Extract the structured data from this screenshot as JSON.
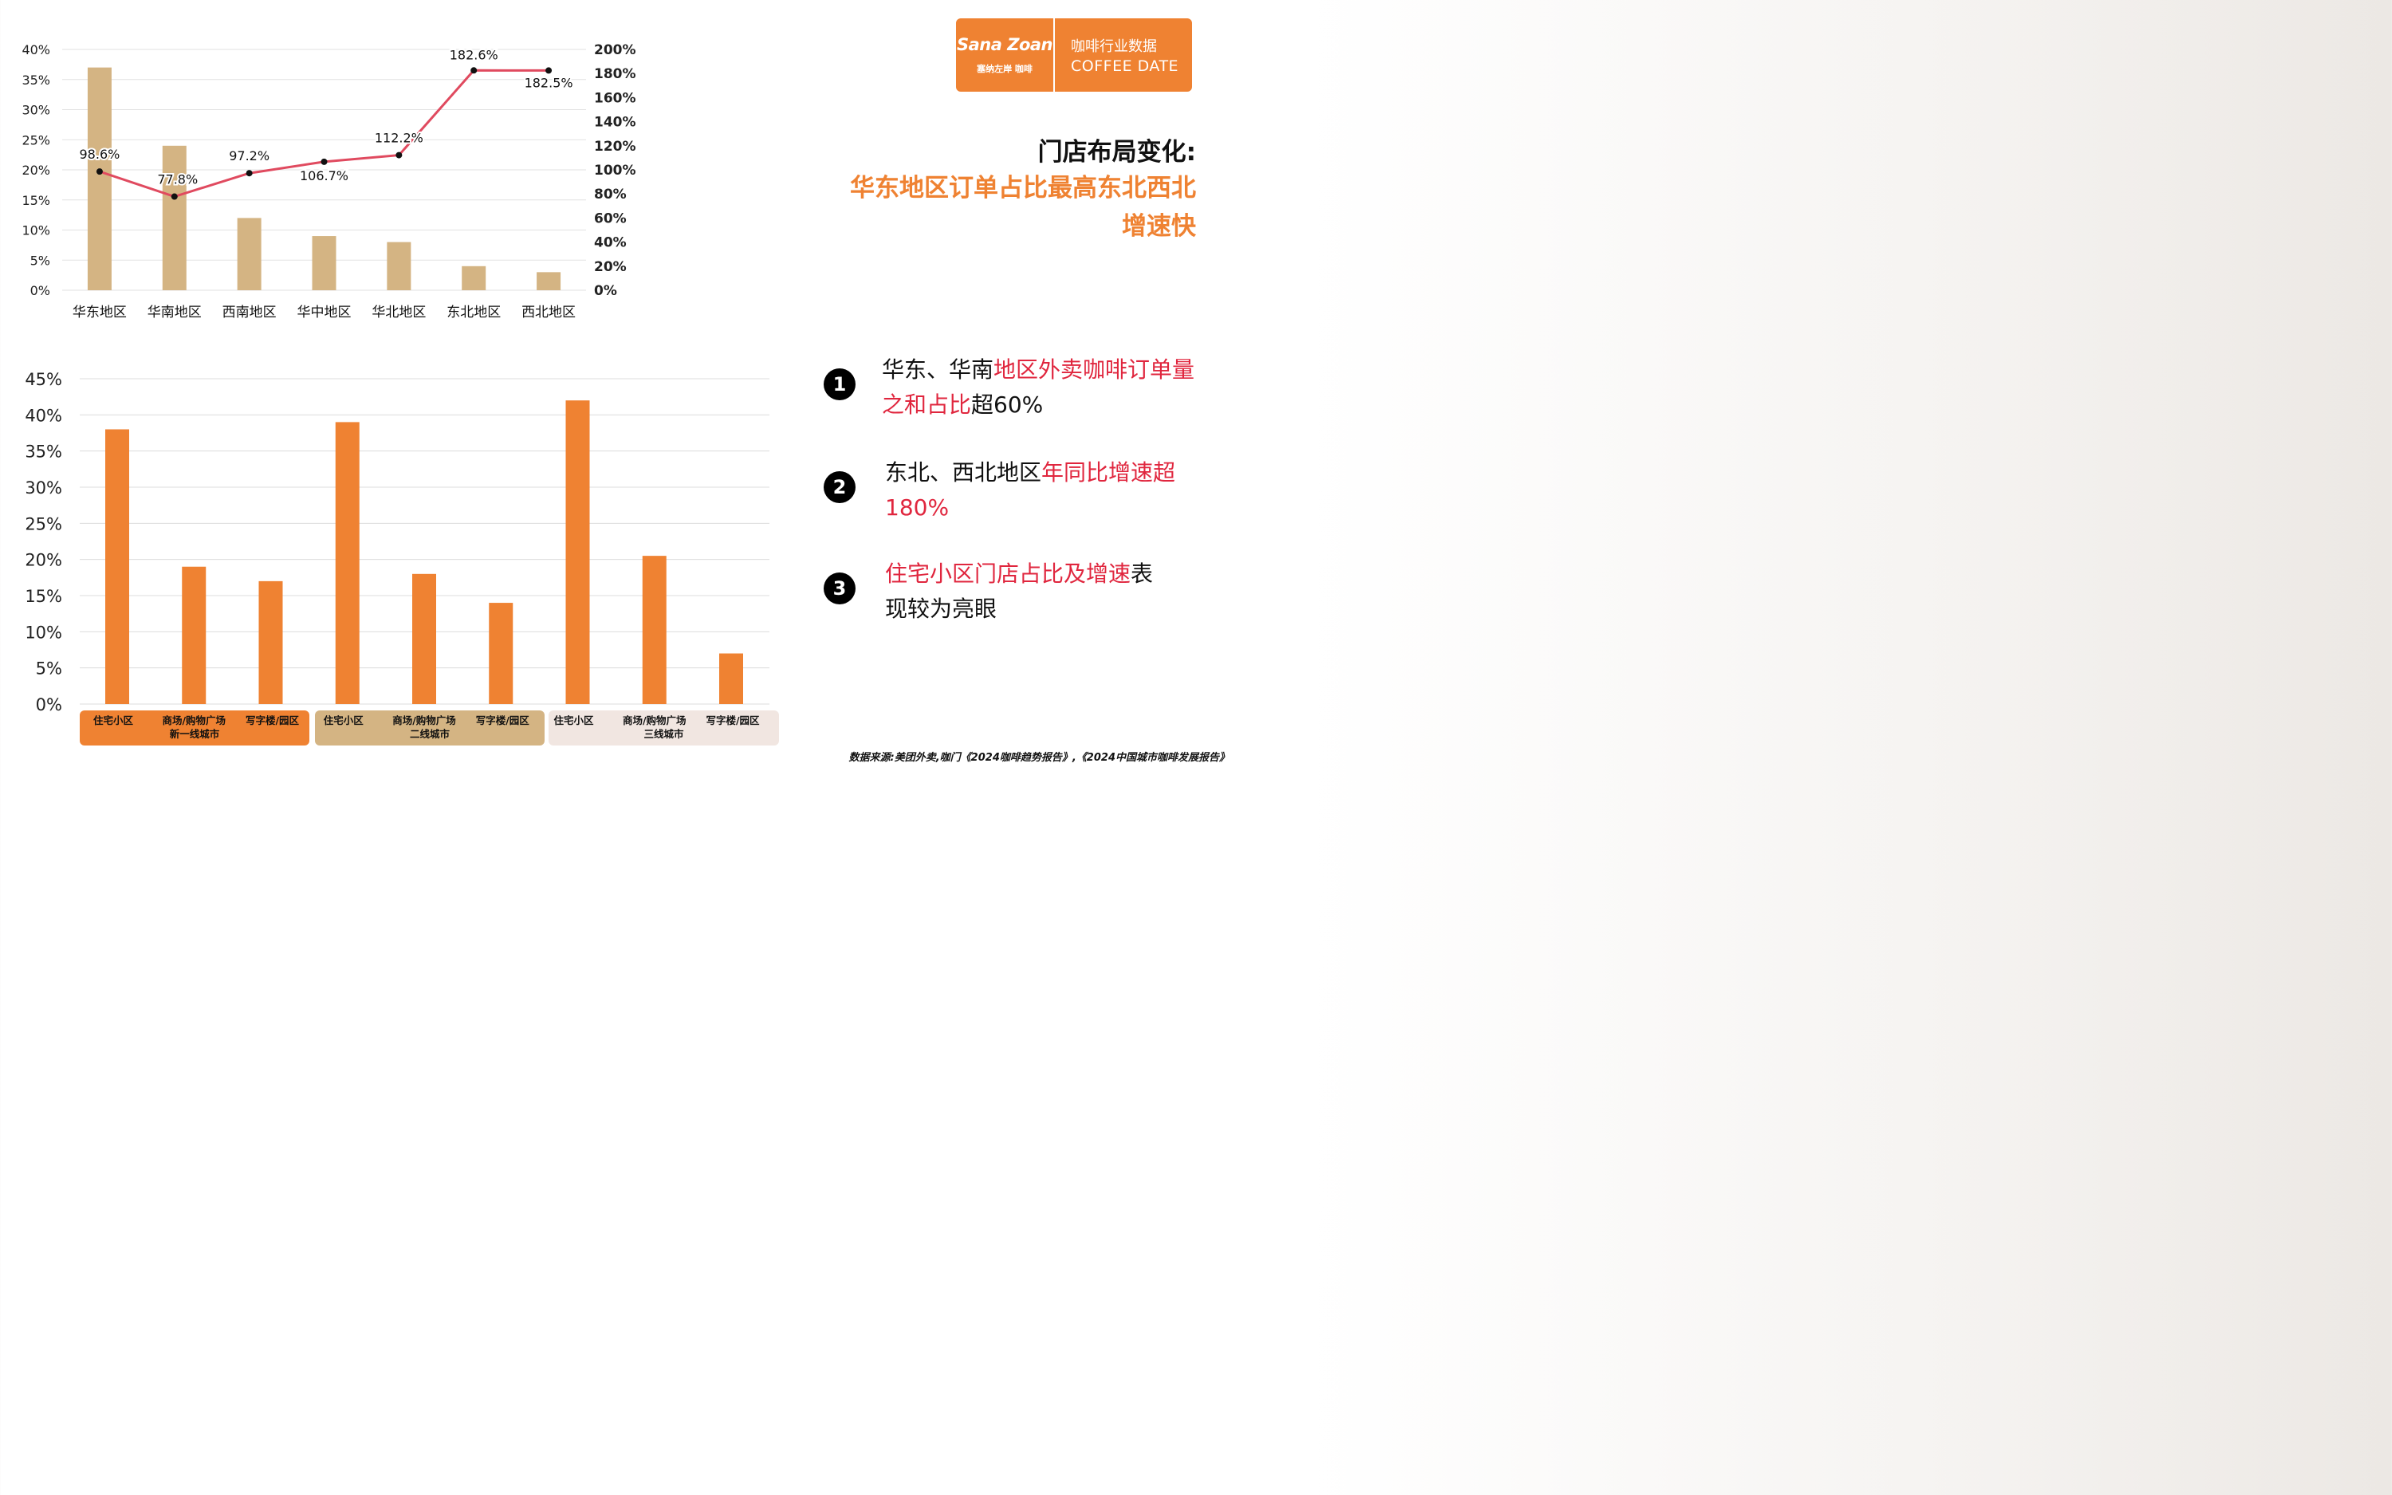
{
  "logo": {
    "brand": "Sana Zoan",
    "sub": "塞纳左岸 咖啡",
    "title_cn": "咖啡行业数据",
    "title_en": "COFFEE DATE"
  },
  "headline": {
    "line1": "门店布局变化:",
    "line2": "华东地区订单占比最高东北西北增速快"
  },
  "points": [
    {
      "num": "1",
      "parts": [
        {
          "t": "华东、华南",
          "red": false
        },
        {
          "t": "地区外卖咖啡订单量之和占比",
          "red": true
        },
        {
          "t": "超60%",
          "red": false
        }
      ]
    },
    {
      "num": "2",
      "parts": [
        {
          "t": "东北、西北地区",
          "red": false
        },
        {
          "t": "年同比增速超180%",
          "red": true
        }
      ]
    },
    {
      "num": "3",
      "parts": [
        {
          "t": "住宅小区门店占比及增速",
          "red": true
        },
        {
          "t": "表现较为亮眼",
          "red": false
        }
      ]
    }
  ],
  "source": "数据来源:美团外卖,咖门《2024咖啡趋势报告》,《2024中国城市咖啡发展报告》",
  "colors": {
    "orange": "#ef8232",
    "tan": "#d4b483",
    "line": "#e04a5f",
    "red": "#e0263e",
    "group3": "#f1e6e1"
  },
  "chart_data": [
    {
      "type": "bar",
      "categories": [
        "华东地区",
        "华南地区",
        "西南地区",
        "华中地区",
        "华北地区",
        "东北地区",
        "西北地区"
      ],
      "series": [
        {
          "values": [
            37,
            24,
            12,
            9,
            8,
            4,
            3
          ],
          "axis": "left",
          "mark": "bar"
        },
        {
          "values": [
            98.6,
            77.8,
            97.2,
            106.7,
            112.2,
            182.6,
            182.5
          ],
          "axis": "right",
          "mark": "line",
          "labels": [
            "98.6%",
            "77.8%",
            "97.2%",
            "106.7%",
            "112.2%",
            "182.6%",
            "182.5%"
          ]
        }
      ],
      "y_left": {
        "ticks": [
          "0%",
          "5%",
          "10%",
          "15%",
          "20%",
          "25%",
          "30%",
          "35%",
          "40%"
        ],
        "ylim": [
          0,
          40
        ]
      },
      "y_right": {
        "ticks": [
          "0%",
          "20%",
          "40%",
          "60%",
          "80%",
          "100%",
          "120%",
          "140%",
          "160%",
          "180%",
          "200%"
        ],
        "ylim": [
          0,
          200
        ]
      },
      "grid": true
    },
    {
      "type": "bar",
      "categories": [
        "住宅小区",
        "商场/购物广场",
        "写字楼/园区",
        "住宅小区",
        "商场/购物广场",
        "写字楼/园区",
        "住宅小区",
        "商场/购物广场",
        "写字楼/园区"
      ],
      "groups": [
        "新一线城市",
        "二线城市",
        "三线城市"
      ],
      "values": [
        38,
        19,
        17,
        39,
        18,
        14,
        42,
        20.5,
        7
      ],
      "y": {
        "ticks": [
          "0%",
          "5%",
          "10%",
          "15%",
          "20%",
          "25%",
          "30%",
          "35%",
          "40%",
          "45%"
        ],
        "ylim": [
          0,
          45
        ]
      },
      "grid": true
    }
  ]
}
